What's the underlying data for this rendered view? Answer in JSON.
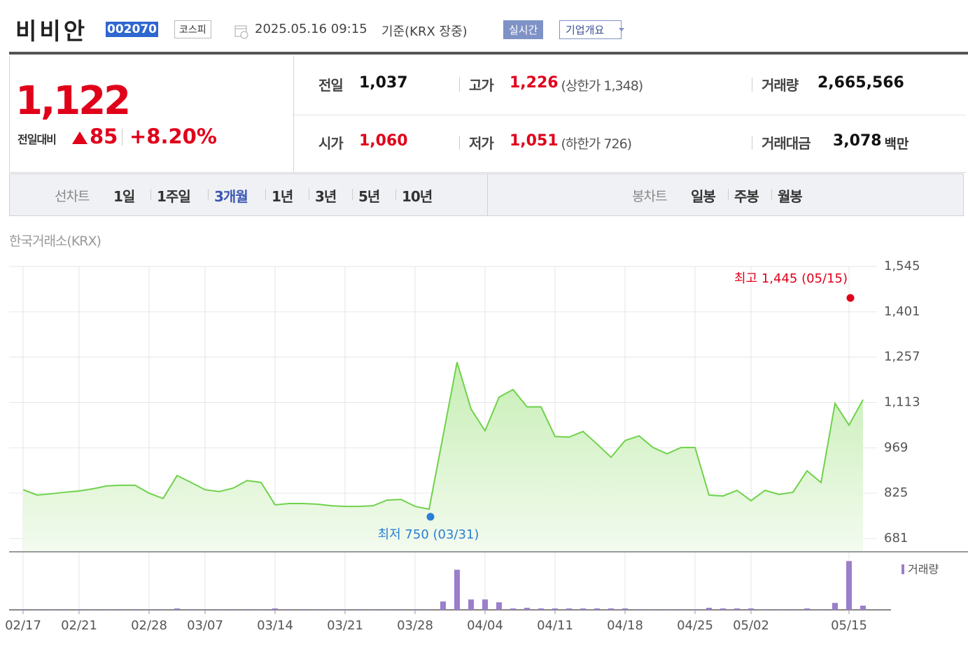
{
  "header": {
    "name": "비비안",
    "code": "002070",
    "market": "코스피",
    "datetime": "2025.05.16 09:15",
    "basis": "기준(KRX 장중)",
    "realtime_button": "실시간",
    "company_button": "기업개요"
  },
  "quote": {
    "price": "1,122",
    "change_label": "전일대비",
    "change": "85",
    "change_rate": "+8.20%",
    "stats": [
      {
        "label": "전일",
        "value": "1,037",
        "color": "#111111"
      },
      {
        "label": "고가",
        "value": "1,226",
        "color": "#e0001a",
        "extra": "(상한가 1,348)"
      },
      {
        "label": "거래량",
        "value": "2,665,566",
        "color": "#111111"
      },
      {
        "label": "시가",
        "value": "1,060",
        "color": "#e0001a"
      },
      {
        "label": "저가",
        "value": "1,051",
        "color": "#e0001a",
        "extra": "(하한가 726)"
      },
      {
        "label": "거래대금",
        "value": "3,078",
        "color": "#111111",
        "unit": "백만"
      }
    ]
  },
  "tabs": [
    {
      "label": "선차트",
      "items": [
        "1일",
        "1주일",
        "3개월",
        "1년",
        "3년",
        "5년",
        "10년"
      ],
      "active": 2
    },
    {
      "label": "봉차트",
      "items": [
        "일봉",
        "주봉",
        "월봉"
      ]
    }
  ],
  "chart_data": {
    "type": "line",
    "exchange_label": "한국거래소(KRX)",
    "categories": [
      "02/17",
      null,
      null,
      null,
      "02/21",
      null,
      null,
      null,
      null,
      "02/28",
      null,
      null,
      null,
      "03/07",
      null,
      null,
      null,
      null,
      "03/14",
      null,
      null,
      null,
      null,
      "03/21",
      null,
      null,
      null,
      null,
      "03/28",
      null,
      null,
      null,
      null,
      "04/04",
      null,
      null,
      null,
      null,
      "04/11",
      null,
      null,
      null,
      null,
      "04/18",
      null,
      null,
      null,
      null,
      "04/25",
      null,
      null,
      null,
      "05/02",
      null,
      null,
      null,
      null,
      null,
      null,
      "05/15",
      null
    ],
    "series": [
      {
        "color": "#6fd24a",
        "values": [
          836,
          819,
          823,
          828,
          832,
          839,
          848,
          850,
          850,
          825,
          808,
          881,
          859,
          836,
          830,
          841,
          865,
          859,
          788,
          792,
          792,
          790,
          785,
          783,
          783,
          785,
          803,
          805,
          783,
          774,
          1007,
          1241,
          1092,
          1023,
          1130,
          1154,
          1099,
          1099,
          1005,
          1003,
          1021,
          981,
          939,
          992,
          1007,
          970,
          950,
          970,
          970,
          819,
          816,
          834,
          801,
          834,
          821,
          828,
          896,
          859,
          1110,
          1041,
          1122
        ]
      },
      {
        "name": "거래량",
        "color": "#9a7fcb",
        "axis": "y2",
        "values": [
          300000,
          300000,
          300000,
          300000,
          300000,
          300000,
          300000,
          300000,
          300000,
          300000,
          300000,
          900000,
          300000,
          300000,
          300000,
          300000,
          300000,
          300000,
          900000,
          300000,
          300000,
          300000,
          300000,
          300000,
          300000,
          300000,
          300000,
          300000,
          300000,
          300000,
          5300000,
          25500000,
          6600000,
          6600000,
          4800000,
          900000,
          1300000,
          900000,
          900000,
          900000,
          900000,
          900000,
          900000,
          900000,
          300000,
          300000,
          300000,
          300000,
          300000,
          1300000,
          900000,
          900000,
          900000,
          300000,
          300000,
          300000,
          900000,
          300000,
          4400000,
          31000000,
          2670000
        ]
      }
    ],
    "ylim": [
      641,
      1545
    ],
    "yticks": [
      681,
      825,
      969,
      {
        "value": 1113,
        "label": "1,113"
      },
      {
        "value": 1257,
        "label": "1,257"
      },
      {
        "value": 1401,
        "label": "1,401"
      },
      {
        "value": 1545,
        "label": "1,545"
      }
    ],
    "y2lim": [
      0,
      32000000
    ],
    "grid": true,
    "annotations": [
      {
        "label": "최고 1,445 (05/15)",
        "value": 1445,
        "color": "#e0001a"
      },
      {
        "label": "최저 750 (03/31)",
        "value": 750,
        "color": "#2a7fd4"
      }
    ]
  }
}
